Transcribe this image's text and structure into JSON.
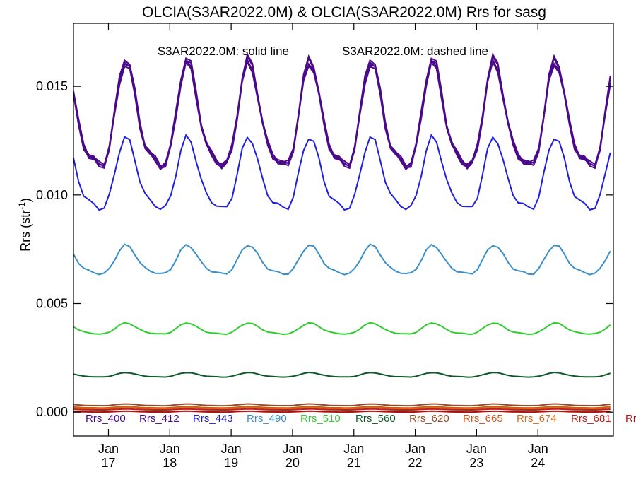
{
  "chart_data": {
    "type": "line",
    "title": "OLCIA(S3AR2022.0M) & OLCIA(S3AR2022.0M)  Rrs for sasg",
    "annotation_solid": "S3AR2022.0M: solid line",
    "annotation_dashed": "S3AR2022.0M: dashed line",
    "ylabel": "Rrs (str",
    "ylabel_sup": "-1",
    "ylabel_close": ")",
    "ylim": [
      -0.0011,
      0.0179
    ],
    "xlim": [
      2016.1,
      2024.9
    ],
    "yticks": [
      {
        "value": 0.0,
        "label": "0.000"
      },
      {
        "value": 0.005,
        "label": "0.005"
      },
      {
        "value": 0.01,
        "label": "0.010"
      },
      {
        "value": 0.015,
        "label": "0.015"
      }
    ],
    "xticks": [
      {
        "value": 2016.67,
        "month": "Jan",
        "year": "17"
      },
      {
        "value": 2017.67,
        "month": "Jan",
        "year": "18"
      },
      {
        "value": 2018.67,
        "month": "Jan",
        "year": "19"
      },
      {
        "value": 2019.67,
        "month": "Jan",
        "year": "20"
      },
      {
        "value": 2020.67,
        "month": "Jan",
        "year": "21"
      },
      {
        "value": 2021.67,
        "month": "Jan",
        "year": "22"
      },
      {
        "value": 2022.67,
        "month": "Jan",
        "year": "23"
      },
      {
        "value": 2023.67,
        "month": "Jan",
        "year": "24"
      }
    ],
    "grid": false,
    "legend_position": "bottom",
    "legend": [
      {
        "label": "Rrs_400",
        "color": "#4b0a8a"
      },
      {
        "label": "Rrs_412",
        "color": "#4b0a8a"
      },
      {
        "label": "Rrs_443",
        "color": "#1f1fe0"
      },
      {
        "label": "Rrs_490",
        "color": "#3a8fc8"
      },
      {
        "label": "Rrs_510",
        "color": "#2ecc2e"
      },
      {
        "label": "Rrs_560",
        "color": "#0b5a2a"
      },
      {
        "label": "Rrs_620",
        "color": "#9a4a22"
      },
      {
        "label": "Rrs_665",
        "color": "#d4541a"
      },
      {
        "label": "Rrs_674",
        "color": "#d96a18"
      },
      {
        "label": "Rrs_681",
        "color": "#c0201c"
      },
      {
        "label": "Rr",
        "color": "#b01010"
      }
    ],
    "series": [
      {
        "name": "Rrs_400",
        "color": "#4b0a8a",
        "base": 0.0134,
        "amp": 0.0024,
        "peak_phase": 0.97
      },
      {
        "name": "Rrs_412",
        "color": "#4b0a8a",
        "base": 0.0133,
        "amp": 0.0023,
        "peak_phase": 0.97
      },
      {
        "name": "Rrs_443",
        "color": "#1f1fe0",
        "base": 0.0107,
        "amp": 0.0016,
        "peak_phase": 0.97
      },
      {
        "name": "Rrs_490",
        "color": "#3a8fc8",
        "base": 0.0069,
        "amp": 0.00065,
        "peak_phase": 0.97
      },
      {
        "name": "Rrs_510",
        "color": "#2ecc2e",
        "base": 0.0038,
        "amp": 0.00025,
        "peak_phase": 0.97
      },
      {
        "name": "Rrs_560",
        "color": "#0b5a2a",
        "base": 0.0017,
        "amp": 0.0001,
        "peak_phase": 0.97
      },
      {
        "name": "Rrs_620",
        "color": "#9a4a22",
        "base": 0.00033,
        "amp": 4e-05,
        "peak_phase": 0.97
      },
      {
        "name": "Rrs_665",
        "color": "#d4541a",
        "base": 0.00022,
        "amp": 3e-05,
        "peak_phase": 0.97
      },
      {
        "name": "Rrs_674",
        "color": "#d96a18",
        "base": 0.00018,
        "amp": 3e-05,
        "peak_phase": 0.97
      },
      {
        "name": "Rrs_681",
        "color": "#c0201c",
        "base": 0.00012,
        "amp": 2e-05,
        "peak_phase": 0.97
      },
      {
        "name": "Rr",
        "color": "#b01010",
        "base": 2e-05,
        "amp": 2e-05,
        "peak_phase": 0.97
      }
    ]
  }
}
